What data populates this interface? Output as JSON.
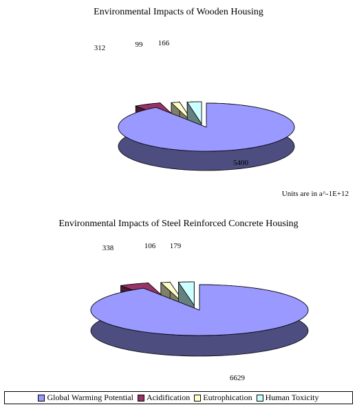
{
  "units_note": "Units are in a^-1E+12",
  "legend": [
    {
      "label": "Global Warming Potential",
      "color": "#9999ff"
    },
    {
      "label": "Acidification",
      "color": "#993366"
    },
    {
      "label": "Eutrophication",
      "color": "#ffffcc"
    },
    {
      "label": "Human Toxicity",
      "color": "#ccffff"
    }
  ],
  "chart_data": [
    {
      "type": "pie",
      "title": "Environmental Impacts of Wooden Housing",
      "categories": [
        "Global Warming Potential",
        "Acidification",
        "Eutrophication",
        "Human Toxicity"
      ],
      "values": [
        5400,
        312,
        99,
        166
      ],
      "three_d": true,
      "exploded": [
        "Acidification",
        "Eutrophication",
        "Human Toxicity"
      ],
      "legend": "bottom"
    },
    {
      "type": "pie",
      "title": "Environmental Impacts of Steel Reinforced Concrete Housing",
      "categories": [
        "Global Warming Potential",
        "Acidification",
        "Eutrophication",
        "Human Toxicity"
      ],
      "values": [
        6629,
        338,
        106,
        179
      ],
      "three_d": true,
      "exploded": [
        "Acidification",
        "Eutrophication",
        "Human Toxicity"
      ],
      "legend": "bottom"
    }
  ]
}
